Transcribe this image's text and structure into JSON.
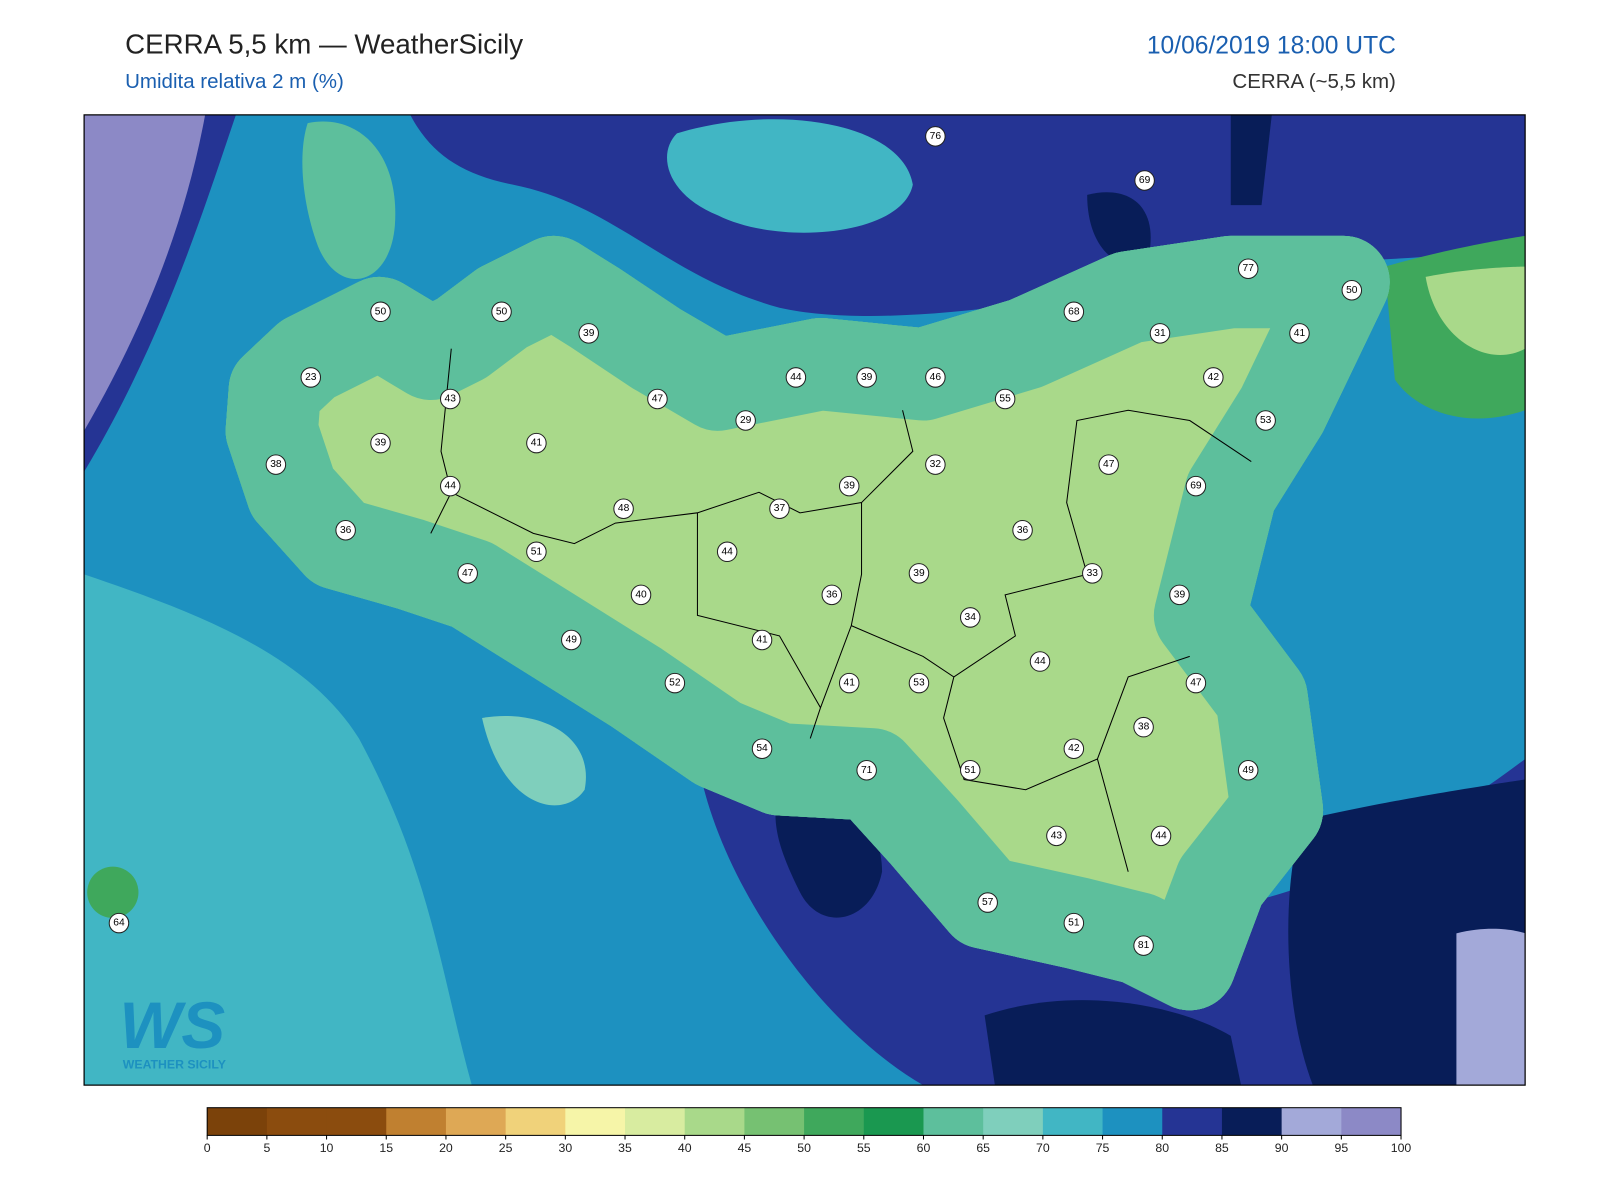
{
  "header": {
    "title": "CERRA 5,5 km — WeatherSicily",
    "subtitle": "Umidita relativa 2 m (%)",
    "datetime": "10/06/2019 18:00 UTC",
    "source": "CERRA (~5,5 km)"
  },
  "logo": {
    "mark": "WS",
    "text": "Weather Sicily"
  },
  "stations": [
    76,
    69,
    77,
    50,
    50,
    50,
    39,
    68,
    31,
    41,
    23,
    43,
    47,
    44,
    39,
    46,
    55,
    42,
    29,
    53,
    39,
    41,
    38,
    32,
    47,
    69,
    44,
    39,
    48,
    37,
    36,
    36,
    51,
    44,
    47,
    39,
    33,
    40,
    36,
    39,
    34,
    49,
    41,
    44,
    52,
    41,
    53,
    47,
    38,
    54,
    42,
    71,
    51,
    49,
    43,
    44,
    57,
    51,
    81,
    64
  ],
  "colorbar": {
    "ticks": [
      0,
      5,
      10,
      15,
      20,
      25,
      30,
      35,
      40,
      45,
      50,
      55,
      60,
      65,
      70,
      75,
      80,
      85,
      90,
      95,
      100
    ],
    "colors": [
      "#7b420a",
      "#8b4c0e",
      "#8b4c0e",
      "#c08030",
      "#dea855",
      "#f0d27a",
      "#f6f5a8",
      "#d8eca0",
      "#a9d98a",
      "#76c172",
      "#3fa85c",
      "#1a9850",
      "#5dbf9c",
      "#7fcfbc",
      "#41b6c4",
      "#1d91c0",
      "#253494",
      "#081d58",
      "#a3a9d9",
      "#8c89c6"
    ]
  }
}
